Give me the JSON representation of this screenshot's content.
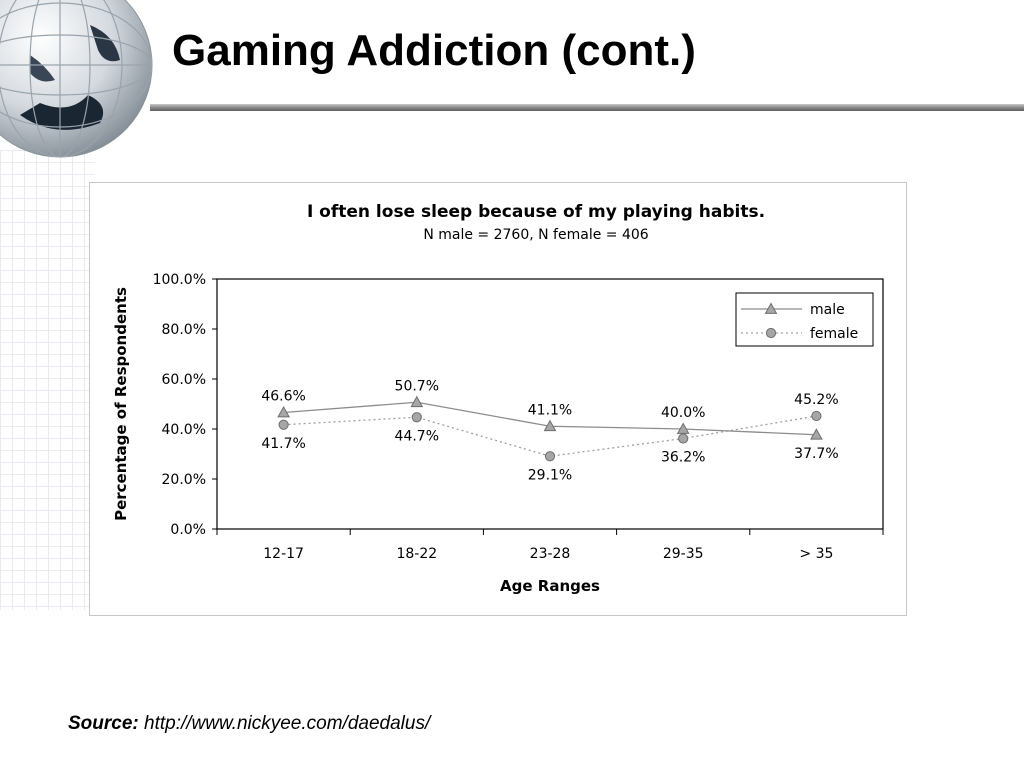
{
  "slide": {
    "title": "Gaming Addiction (cont.)",
    "source_label": "Source:",
    "source_url": "http://www.nickyee.com/daedalus/"
  },
  "colors": {
    "male_line": "#8c8c8c",
    "female_line": "#a0a0a0",
    "marker_fill": "#a6a6a6",
    "marker_stroke": "#6e6e6e",
    "title_rule": "#7a7a7a"
  },
  "icons": {
    "globe": "globe-icon"
  },
  "chart_data": {
    "type": "line",
    "title": "I often lose sleep because of my playing habits.",
    "subtitle": "N male = 2760, N female = 406",
    "xlabel": "Age Ranges",
    "ylabel": "Percentage of Respondents",
    "categories": [
      "12-17",
      "18-22",
      "23-28",
      "29-35",
      "> 35"
    ],
    "yticks": [
      "0.0%",
      "20.0%",
      "40.0%",
      "60.0%",
      "80.0%",
      "100.0%"
    ],
    "ylim": [
      0,
      100
    ],
    "grid": false,
    "legend_position": "top-right",
    "series": [
      {
        "name": "male",
        "marker": "triangle",
        "line_style": "solid",
        "values": [
          46.6,
          50.7,
          41.1,
          40.0,
          37.7
        ],
        "labels": [
          "46.6%",
          "50.7%",
          "41.1%",
          "40.0%",
          "37.7%"
        ]
      },
      {
        "name": "female",
        "marker": "circle",
        "line_style": "dotted",
        "values": [
          41.7,
          44.7,
          29.1,
          36.2,
          45.2
        ],
        "labels": [
          "41.7%",
          "44.7%",
          "29.1%",
          "36.2%",
          "45.2%"
        ]
      }
    ]
  }
}
